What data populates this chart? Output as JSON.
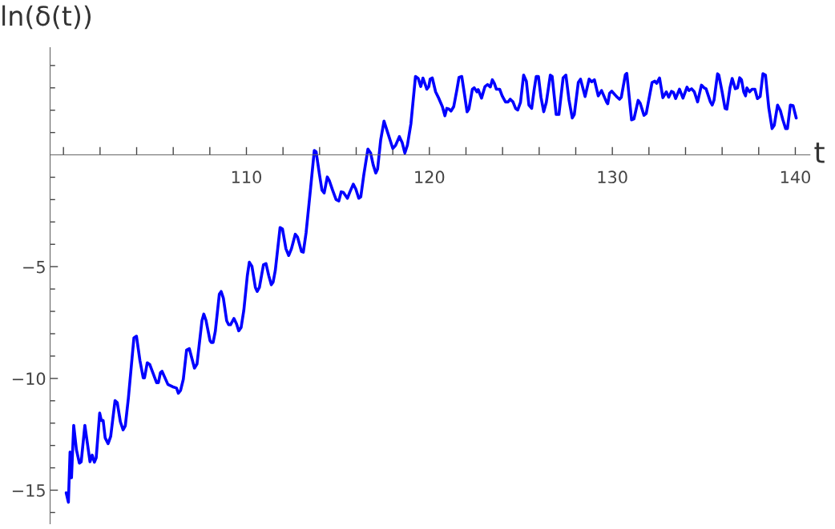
{
  "chart_data": {
    "type": "line",
    "xlabel": "t",
    "ylabel": "ln(δ(t))",
    "xlim": [
      99.27,
      140.8
    ],
    "ylim": [
      -16.5,
      4.8
    ],
    "xticks": [
      {
        "value": 100,
        "label": null
      },
      {
        "value": 102,
        "label": null
      },
      {
        "value": 104,
        "label": null
      },
      {
        "value": 106,
        "label": null
      },
      {
        "value": 108,
        "label": null
      },
      110,
      {
        "value": 112,
        "label": null
      },
      {
        "value": 114,
        "label": null
      },
      {
        "value": 116,
        "label": null
      },
      {
        "value": 118,
        "label": null
      },
      120,
      {
        "value": 122,
        "label": null
      },
      {
        "value": 124,
        "label": null
      },
      {
        "value": 126,
        "label": null
      },
      {
        "value": 128,
        "label": null
      },
      130,
      {
        "value": 132,
        "label": null
      },
      {
        "value": 134,
        "label": null
      },
      {
        "value": 136,
        "label": null
      },
      {
        "value": 138,
        "label": null
      },
      140
    ],
    "yticks": [
      {
        "value": -16,
        "label": null
      },
      {
        "value": -15,
        "label": "−15"
      },
      {
        "value": -14,
        "label": null
      },
      {
        "value": -13,
        "label": null
      },
      {
        "value": -12,
        "label": null
      },
      {
        "value": -11,
        "label": null
      },
      {
        "value": -10,
        "label": "−10"
      },
      {
        "value": -9,
        "label": null
      },
      {
        "value": -8,
        "label": null
      },
      {
        "value": -7,
        "label": null
      },
      {
        "value": -6,
        "label": null
      },
      {
        "value": -5,
        "label": "−5"
      },
      {
        "value": -4,
        "label": null
      },
      {
        "value": -3,
        "label": null
      },
      {
        "value": -2,
        "label": null
      },
      {
        "value": -1,
        "label": null
      },
      {
        "value": 1,
        "label": null
      },
      {
        "value": 2,
        "label": null
      },
      {
        "value": 3,
        "label": null
      },
      {
        "value": 4,
        "label": null
      }
    ],
    "grid": false,
    "marker": "none",
    "line_style": "solid",
    "series": [
      {
        "color": "#0000ff",
        "x": [
          100.15,
          100.27,
          100.36,
          100.44,
          100.56,
          100.71,
          100.87,
          100.97,
          101.17,
          101.45,
          101.57,
          101.69,
          101.79,
          101.98,
          102.07,
          102.17,
          102.28,
          102.44,
          102.58,
          102.82,
          102.94,
          103.11,
          103.26,
          103.38,
          103.55,
          103.85,
          103.99,
          104.18,
          104.36,
          104.43,
          104.58,
          104.72,
          105.09,
          105.19,
          105.3,
          105.39,
          105.52,
          105.71,
          105.96,
          106.18,
          106.28,
          106.4,
          106.55,
          106.73,
          106.88,
          107.03,
          107.16,
          107.3,
          107.57,
          107.67,
          107.79,
          108.01,
          108.08,
          108.18,
          108.3,
          108.52,
          108.62,
          108.74,
          108.92,
          109.03,
          109.13,
          109.32,
          109.46,
          109.58,
          109.71,
          109.86,
          110.05,
          110.16,
          110.3,
          110.49,
          110.59,
          110.71,
          110.93,
          111.07,
          111.22,
          111.36,
          111.46,
          111.58,
          111.84,
          111.97,
          112.16,
          112.31,
          112.46,
          112.67,
          112.79,
          113.01,
          113.11,
          113.26,
          113.51,
          113.71,
          113.81,
          113.99,
          114.13,
          114.25,
          114.42,
          114.54,
          114.71,
          114.9,
          115.05,
          115.18,
          115.3,
          115.52,
          115.66,
          115.84,
          115.98,
          116.14,
          116.25,
          116.42,
          116.64,
          116.79,
          116.93,
          117.07,
          117.17,
          117.34,
          117.52,
          118.0,
          118.15,
          118.36,
          118.51,
          118.66,
          118.8,
          118.99,
          119.24,
          119.39,
          119.53,
          119.65,
          119.86,
          119.97,
          120.04,
          120.16,
          120.34,
          120.52,
          120.71,
          120.85,
          120.95,
          121.07,
          121.18,
          121.33,
          121.51,
          121.62,
          121.77,
          121.92,
          122.06,
          122.16,
          122.35,
          122.45,
          122.6,
          122.67,
          122.85,
          123.04,
          123.18,
          123.33,
          123.44,
          123.55,
          123.66,
          123.84,
          123.98,
          124.16,
          124.3,
          124.42,
          124.57,
          124.71,
          124.83,
          124.98,
          125.15,
          125.3,
          125.44,
          125.59,
          125.73,
          125.84,
          125.96,
          126.1,
          126.25,
          126.39,
          126.61,
          126.71,
          126.93,
          127.08,
          127.31,
          127.46,
          127.63,
          127.81,
          127.92,
          128.14,
          128.26,
          128.51,
          128.73,
          128.87,
          129.02,
          129.23,
          129.41,
          129.68,
          129.75,
          129.85,
          129.97,
          130.23,
          130.39,
          130.49,
          130.71,
          130.79,
          131.05,
          131.18,
          131.41,
          131.52,
          131.73,
          131.85,
          132.17,
          132.32,
          132.42,
          132.58,
          132.76,
          132.95,
          133.08,
          133.23,
          133.34,
          133.46,
          133.67,
          133.86,
          134.08,
          134.19,
          134.33,
          134.48,
          134.66,
          134.87,
          135.02,
          135.12,
          135.36,
          135.46,
          135.56,
          135.75,
          135.82,
          136.0,
          136.16,
          136.26,
          136.43,
          136.55,
          136.72,
          136.84,
          136.96,
          137.06,
          137.18,
          137.28,
          137.35,
          137.5,
          137.64,
          137.79,
          137.93,
          138.08,
          138.23,
          138.37,
          138.55,
          138.73,
          138.85,
          139.03,
          139.18,
          139.32,
          139.47,
          139.57,
          139.73,
          139.88,
          140.05
        ],
        "values": [
          -15.12,
          -15.54,
          -13.29,
          -14.44,
          -12.1,
          -13.2,
          -13.79,
          -13.73,
          -12.1,
          -13.73,
          -13.43,
          -13.75,
          -13.55,
          -11.55,
          -11.88,
          -11.88,
          -12.66,
          -12.92,
          -12.6,
          -10.99,
          -11.08,
          -11.94,
          -12.3,
          -12.12,
          -10.87,
          -8.19,
          -8.11,
          -9.2,
          -9.98,
          -9.98,
          -9.3,
          -9.38,
          -10.19,
          -10.19,
          -9.74,
          -9.68,
          -9.92,
          -10.27,
          -10.37,
          -10.43,
          -10.66,
          -10.54,
          -10.04,
          -8.73,
          -8.67,
          -9.14,
          -9.54,
          -9.35,
          -7.42,
          -7.12,
          -7.4,
          -8.31,
          -8.39,
          -8.39,
          -7.89,
          -6.23,
          -6.11,
          -6.41,
          -7.42,
          -7.6,
          -7.6,
          -7.32,
          -7.56,
          -7.87,
          -7.72,
          -6.94,
          -5.4,
          -4.8,
          -4.98,
          -5.93,
          -6.11,
          -5.93,
          -4.92,
          -4.86,
          -5.4,
          -5.81,
          -5.69,
          -5.16,
          -3.25,
          -3.31,
          -4.2,
          -4.5,
          -4.2,
          -3.55,
          -3.67,
          -4.32,
          -4.35,
          -3.49,
          -1.47,
          0.2,
          0.14,
          -0.87,
          -1.58,
          -1.7,
          -0.99,
          -1.17,
          -1.58,
          -2.0,
          -2.06,
          -1.65,
          -1.68,
          -1.94,
          -1.65,
          -1.31,
          -1.53,
          -1.94,
          -1.88,
          -0.87,
          0.26,
          0.08,
          -0.45,
          -0.81,
          -0.63,
          0.68,
          1.51,
          0.29,
          0.42,
          0.82,
          0.56,
          0.08,
          0.44,
          1.39,
          3.51,
          3.42,
          3.06,
          3.44,
          2.94,
          3.06,
          3.39,
          3.44,
          2.82,
          2.52,
          2.16,
          1.75,
          2.08,
          2.05,
          1.96,
          2.16,
          2.94,
          3.47,
          3.51,
          2.7,
          1.93,
          2.05,
          2.94,
          3.0,
          2.82,
          2.92,
          2.54,
          3.06,
          3.15,
          3.04,
          3.36,
          3.2,
          2.94,
          2.94,
          2.64,
          2.37,
          2.37,
          2.49,
          2.37,
          2.08,
          2.01,
          2.35,
          3.57,
          3.3,
          2.23,
          2.08,
          2.94,
          3.51,
          3.51,
          2.58,
          1.93,
          2.35,
          3.57,
          3.51,
          1.81,
          1.81,
          3.45,
          3.57,
          2.46,
          1.65,
          1.81,
          3.24,
          3.39,
          2.61,
          3.39,
          3.27,
          3.36,
          2.64,
          2.88,
          2.37,
          2.29,
          2.76,
          2.85,
          2.61,
          2.49,
          2.58,
          3.59,
          3.65,
          1.57,
          1.61,
          2.44,
          2.32,
          1.77,
          1.85,
          3.24,
          3.3,
          3.2,
          3.44,
          2.56,
          2.82,
          2.58,
          2.84,
          2.8,
          2.52,
          2.94,
          2.54,
          3.03,
          2.88,
          2.96,
          2.82,
          2.37,
          3.12,
          3.0,
          2.96,
          2.37,
          2.23,
          2.46,
          3.63,
          3.57,
          2.82,
          2.08,
          2.05,
          3.0,
          3.42,
          2.96,
          3.0,
          3.45,
          3.36,
          2.82,
          2.64,
          3.0,
          2.82,
          2.94,
          2.94,
          2.52,
          2.61,
          3.63,
          3.57,
          2.11,
          1.18,
          1.33,
          2.23,
          1.99,
          1.57,
          1.18,
          1.18,
          2.23,
          2.2,
          1.65
        ]
      }
    ]
  }
}
